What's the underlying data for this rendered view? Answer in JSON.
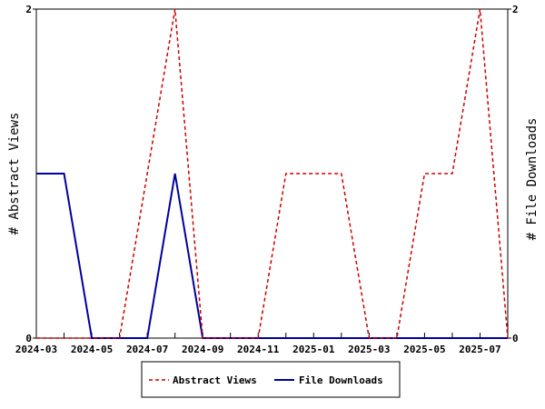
{
  "chart_data": {
    "type": "line",
    "x": [
      "2024-03",
      "2024-04",
      "2024-05",
      "2024-06",
      "2024-07",
      "2024-08",
      "2024-09",
      "2024-10",
      "2024-11",
      "2024-12",
      "2025-01",
      "2025-02",
      "2025-03",
      "2025-04",
      "2025-05",
      "2025-06",
      "2025-07",
      "2025-08"
    ],
    "x_tick_labels": [
      "2024-03",
      "2024-05",
      "2024-07",
      "2024-09",
      "2024-11",
      "2025-01",
      "2025-03",
      "2025-05",
      "2025-07"
    ],
    "ylim": [
      0,
      2
    ],
    "y_ticks": [
      0,
      2
    ],
    "ylabel_left": "# Abstract Views",
    "ylabel_right": "# File Downloads",
    "legend_position": "bottom",
    "series": [
      {
        "name": "Abstract Views",
        "axis": "left",
        "color": "#cc0000",
        "style": "dashed",
        "values": [
          0,
          0,
          0,
          0,
          1,
          2,
          0,
          0,
          0,
          1,
          1,
          1,
          0,
          0,
          1,
          1,
          2,
          0
        ]
      },
      {
        "name": "File Downloads",
        "axis": "right",
        "color": "#00009c",
        "style": "solid",
        "values": [
          1,
          1,
          0,
          0,
          0,
          1,
          0,
          0,
          0,
          0,
          0,
          0,
          0,
          0,
          0,
          0,
          0,
          0
        ]
      }
    ]
  }
}
